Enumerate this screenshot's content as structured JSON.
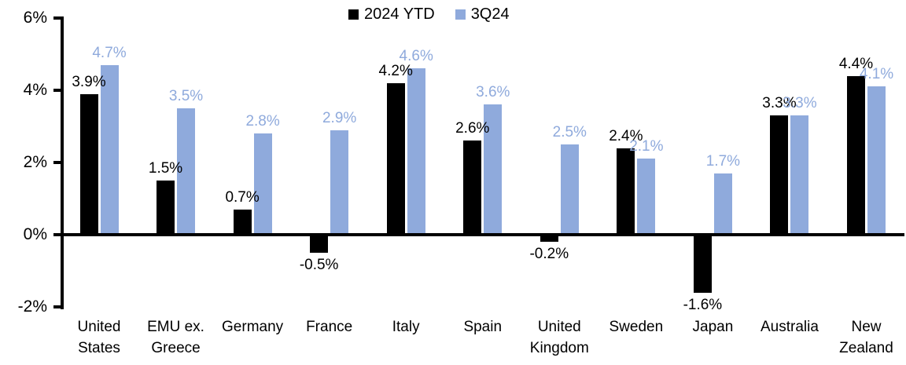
{
  "chart_data": {
    "type": "bar",
    "categories": [
      "United States",
      "EMU ex. Greece",
      "Germany",
      "France",
      "Italy",
      "Spain",
      "United Kingdom",
      "Sweden",
      "Japan",
      "Australia",
      "New Zealand"
    ],
    "series": [
      {
        "name": "2024 YTD",
        "color": "#000000",
        "values": [
          3.9,
          1.5,
          0.7,
          -0.5,
          4.2,
          2.6,
          -0.2,
          2.4,
          -1.6,
          3.3,
          4.4
        ],
        "labels": [
          "3.9%",
          "1.5%",
          "0.7%",
          "-0.5%",
          "4.2%",
          "2.6%",
          "-0.2%",
          "2.4%",
          "-1.6%",
          "3.3%",
          "4.4%"
        ]
      },
      {
        "name": "3Q24",
        "color": "#8FAADC",
        "values": [
          4.7,
          3.5,
          2.8,
          2.9,
          4.6,
          3.6,
          2.5,
          2.1,
          1.7,
          3.3,
          4.1
        ],
        "labels": [
          "4.7%",
          "3.5%",
          "2.8%",
          "2.9%",
          "4.6%",
          "3.6%",
          "2.5%",
          "2.1%",
          "1.7%",
          "3.3%",
          "4.1%"
        ]
      }
    ],
    "y_axis": {
      "ticks": [
        {
          "value": 6,
          "label": "6%"
        },
        {
          "value": 4,
          "label": "4%"
        },
        {
          "value": 2,
          "label": "2%"
        },
        {
          "value": 0,
          "label": "0%"
        },
        {
          "value": -2,
          "label": "-2%"
        }
      ],
      "ylim": [
        -2,
        6
      ]
    },
    "title": "",
    "xlabel": "",
    "ylabel": "",
    "grid": false,
    "legend_position": "top-center"
  }
}
